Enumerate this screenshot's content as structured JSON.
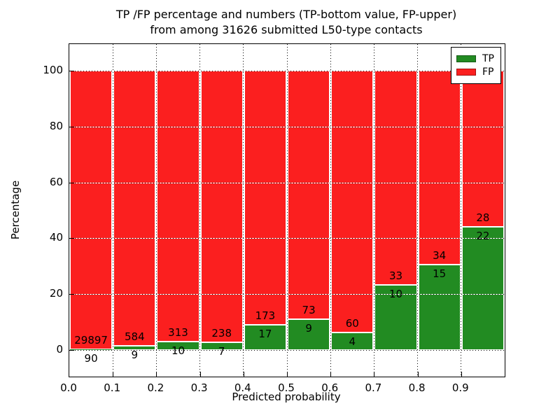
{
  "title": {
    "line1": "TP /FP percentage and numbers (TP-bottom value, FP-upper)",
    "line2": "from among 31626 submitted L50-type contacts"
  },
  "chart_data": {
    "type": "bar",
    "stacked": true,
    "normalized_to_percent": true,
    "title": "TP /FP percentage and numbers (TP-bottom value, FP-upper)\nfrom among 31626 submitted L50-type contacts",
    "xlabel": "Predicted probability",
    "ylabel": "Percentage",
    "total_contacts": 31626,
    "bin_width": 0.1,
    "bins": [
      {
        "x0": 0.0,
        "tp_count": 90,
        "fp_count": 29897,
        "tp_pct": 0.3,
        "fp_pct": 99.7
      },
      {
        "x0": 0.1,
        "tp_count": 9,
        "fp_count": 584,
        "tp_pct": 1.52,
        "fp_pct": 98.48
      },
      {
        "x0": 0.2,
        "tp_count": 10,
        "fp_count": 313,
        "tp_pct": 3.1,
        "fp_pct": 96.9
      },
      {
        "x0": 0.3,
        "tp_count": 7,
        "fp_count": 238,
        "tp_pct": 2.86,
        "fp_pct": 97.14
      },
      {
        "x0": 0.4,
        "tp_count": 17,
        "fp_count": 173,
        "tp_pct": 8.95,
        "fp_pct": 91.05
      },
      {
        "x0": 0.5,
        "tp_count": 9,
        "fp_count": 73,
        "tp_pct": 10.98,
        "fp_pct": 89.02
      },
      {
        "x0": 0.6,
        "tp_count": 4,
        "fp_count": 60,
        "tp_pct": 6.25,
        "fp_pct": 93.75
      },
      {
        "x0": 0.7,
        "tp_count": 10,
        "fp_count": 33,
        "tp_pct": 23.26,
        "fp_pct": 76.74
      },
      {
        "x0": 0.8,
        "tp_count": 15,
        "fp_count": 34,
        "tp_pct": 30.61,
        "fp_pct": 69.39
      },
      {
        "x0": 0.9,
        "tp_count": 22,
        "fp_count": 28,
        "tp_pct": 44.0,
        "fp_pct": 56.0
      }
    ],
    "xticks": [
      "0.0",
      "0.1",
      "0.2",
      "0.3",
      "0.4",
      "0.5",
      "0.6",
      "0.7",
      "0.8",
      "0.9"
    ],
    "yticks": [
      0,
      20,
      40,
      60,
      80,
      100
    ],
    "xlim": [
      0.0,
      1.0
    ],
    "ylim": [
      -9.5,
      109.5
    ],
    "grid": "dotted",
    "legend": {
      "position": "upper-right",
      "entries": [
        {
          "label": "TP",
          "color": "#228b22"
        },
        {
          "label": "FP",
          "color": "#fb1f1f"
        }
      ]
    },
    "colors": {
      "tp": "#228b22",
      "fp": "#fb1f1f",
      "grid": "#000000",
      "background": "#ffffff"
    }
  }
}
